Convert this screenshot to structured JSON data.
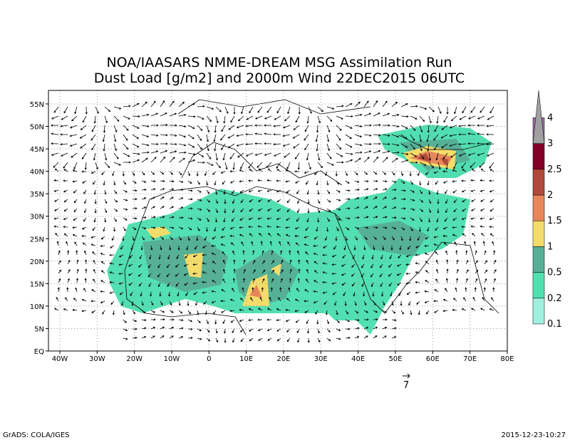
{
  "header": {
    "title_line1": "NOA/IAASARS NMME-DREAM MSG Assimilation Run",
    "title_line2": "Dust Load [g/m2] and 2000m Wind 22DEC2015 06UTC"
  },
  "map": {
    "lon_labels": [
      "40W",
      "30W",
      "20W",
      "10W",
      "0",
      "10E",
      "20E",
      "30E",
      "40E",
      "50E",
      "60E",
      "70E",
      "80E"
    ],
    "lat_labels": [
      "EQ",
      "5N",
      "10N",
      "15N",
      "20N",
      "25N",
      "30N",
      "35N",
      "40N",
      "45N",
      "50N",
      "55N"
    ],
    "wind_reference": "7"
  },
  "colorbar": {
    "labels": [
      "0.1",
      "0.2",
      "0.5",
      "1",
      "1.5",
      "2",
      "2.5",
      "3",
      "4"
    ],
    "colors": [
      "#a0f0e0",
      "#50e0b0",
      "#55b096",
      "#f4dc6a",
      "#e8865a",
      "#b04a3a",
      "#820028",
      "#9b6ba8",
      "#a0a0a0"
    ]
  },
  "footer": {
    "left": "GrADS: COLA/IGES",
    "right": "2015-12-23-10:27"
  }
}
